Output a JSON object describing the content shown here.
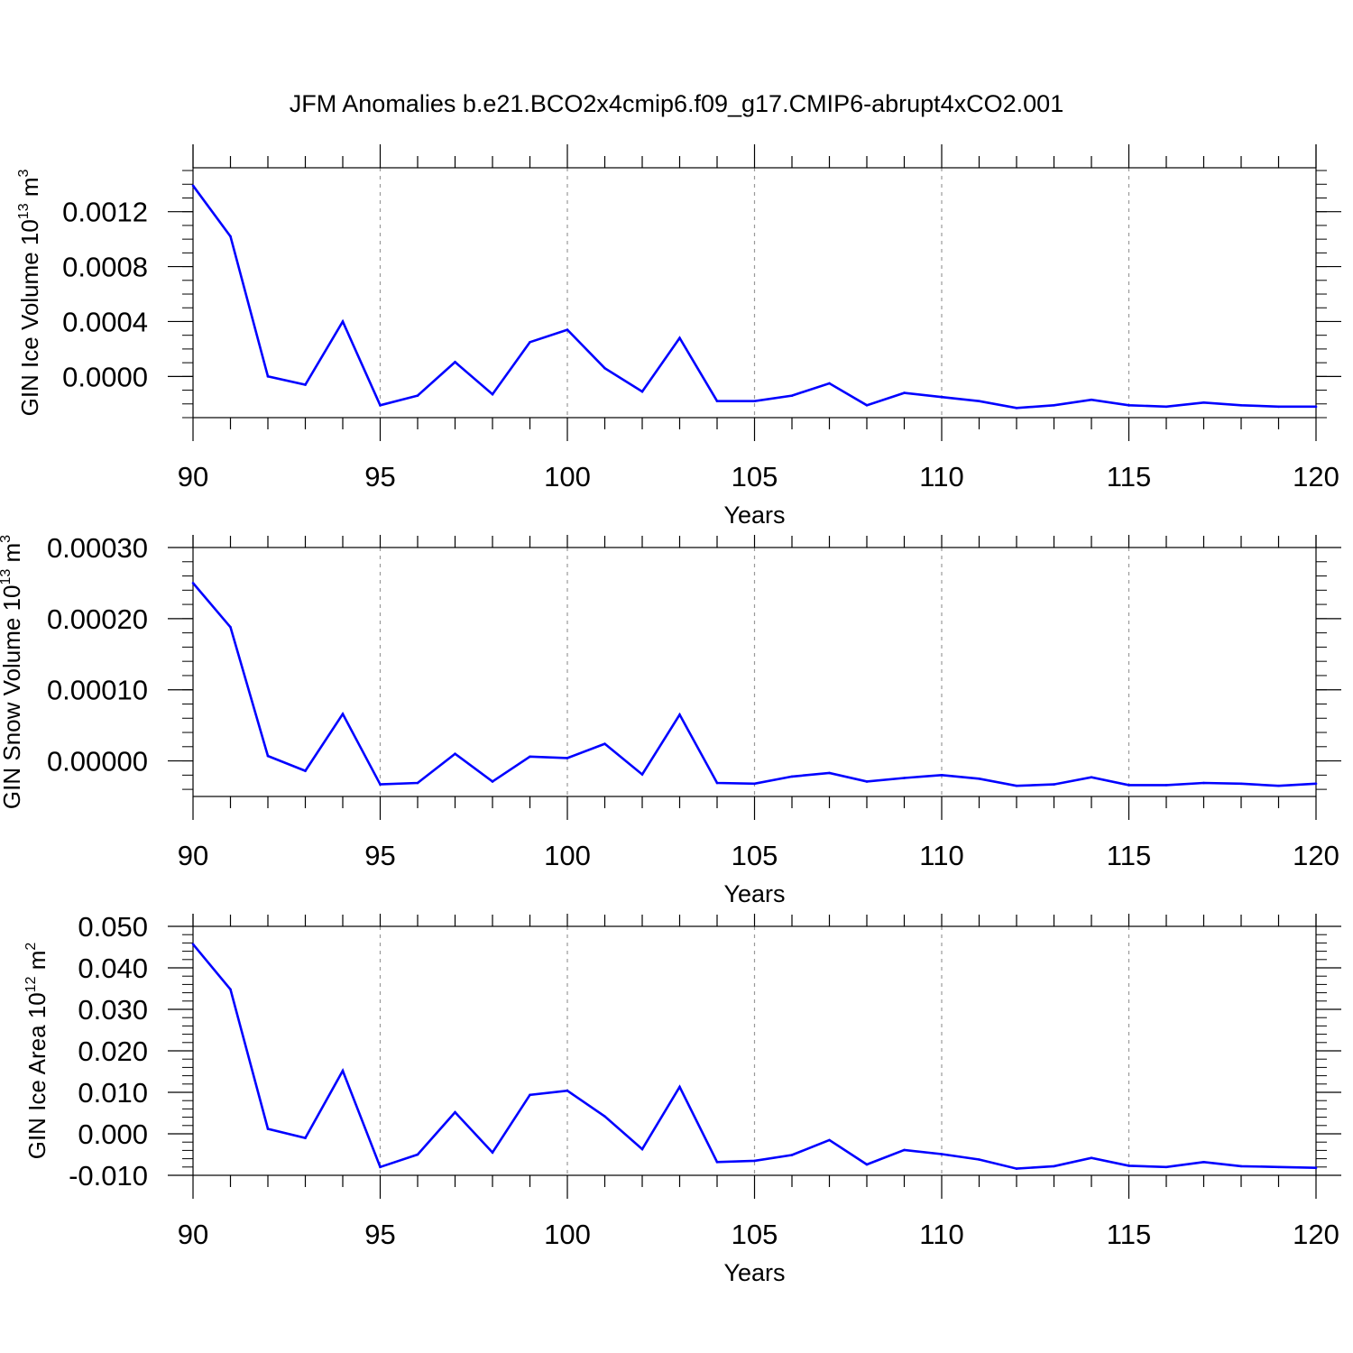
{
  "title": "JFM Anomalies b.e21.BCO2x4cmip6.f09_g17.CMIP6-abrupt4xCO2.001",
  "colors": {
    "series": "#0000ff",
    "axis": "#000000",
    "grid": "#9a9a9a"
  },
  "chart_data": [
    {
      "type": "line",
      "ylabel": "GIN Ice Volume 10",
      "ylabel_sup": "13",
      "ylabel_unit": " m",
      "ylabel_unit_sup": "3",
      "xlabel": "Years",
      "xlim": [
        90,
        120
      ],
      "ylim": [
        -0.0003,
        0.00152
      ],
      "x_ticks": [
        "90",
        "95",
        "100",
        "105",
        "110",
        "115",
        "120"
      ],
      "y_ticks": [
        "0.0000",
        "0.0004",
        "0.0008",
        "0.0012"
      ],
      "y_tick_values": [
        0.0,
        0.0004,
        0.0008,
        0.0012
      ],
      "y_minor_step": 0.0001,
      "grid": "vertical dashed at major x ticks",
      "x": [
        90,
        91,
        92,
        93,
        94,
        95,
        96,
        97,
        98,
        99,
        100,
        101,
        102,
        103,
        104,
        105,
        106,
        107,
        108,
        109,
        110,
        111,
        112,
        113,
        114,
        115,
        116,
        117,
        118,
        119,
        120
      ],
      "values": [
        0.00139,
        0.00102,
        0.0,
        -6e-05,
        0.0004,
        -0.00021,
        -0.00014,
        0.000105,
        -0.00013,
        0.00025,
        0.00034,
        6e-05,
        -0.00011,
        0.00028,
        -0.00018,
        -0.00018,
        -0.00014,
        -5e-05,
        -0.00021,
        -0.00012,
        -0.00015,
        -0.00018,
        -0.00023,
        -0.00021,
        -0.00017,
        -0.00021,
        -0.00022,
        -0.00019,
        -0.00021,
        -0.00022,
        -0.00022
      ]
    },
    {
      "type": "line",
      "ylabel": "GIN Snow Volume 10",
      "ylabel_sup": "13",
      "ylabel_unit": " m",
      "ylabel_unit_sup": "3",
      "xlabel": "Years",
      "xlim": [
        90,
        120
      ],
      "ylim": [
        -5e-05,
        0.0003
      ],
      "x_ticks": [
        "90",
        "95",
        "100",
        "105",
        "110",
        "115",
        "120"
      ],
      "y_ticks": [
        "0.00000",
        "0.00010",
        "0.00020",
        "0.00030"
      ],
      "y_tick_values": [
        0.0,
        0.0001,
        0.0002,
        0.0003
      ],
      "y_minor_step": 2e-05,
      "grid": "vertical dashed at major x ticks",
      "x": [
        90,
        91,
        92,
        93,
        94,
        95,
        96,
        97,
        98,
        99,
        100,
        101,
        102,
        103,
        104,
        105,
        106,
        107,
        108,
        109,
        110,
        111,
        112,
        113,
        114,
        115,
        116,
        117,
        118,
        119,
        120
      ],
      "values": [
        0.00025,
        0.000188,
        7e-06,
        -1.4e-05,
        6.6e-05,
        -3.3e-05,
        -3.1e-05,
        1e-05,
        -2.9e-05,
        6e-06,
        4e-06,
        2.4e-05,
        -1.9e-05,
        6.5e-05,
        -3.1e-05,
        -3.2e-05,
        -2.2e-05,
        -1.7e-05,
        -2.9e-05,
        -2.4e-05,
        -2e-05,
        -2.5e-05,
        -3.5e-05,
        -3.3e-05,
        -2.3e-05,
        -3.4e-05,
        -3.4e-05,
        -3.1e-05,
        -3.2e-05,
        -3.5e-05,
        -3.2e-05
      ]
    },
    {
      "type": "line",
      "ylabel": "GIN Ice Area 10",
      "ylabel_sup": "12",
      "ylabel_unit": " m",
      "ylabel_unit_sup": "2",
      "xlabel": "Years",
      "xlim": [
        90,
        120
      ],
      "ylim": [
        -0.01,
        0.05
      ],
      "x_ticks": [
        "90",
        "95",
        "100",
        "105",
        "110",
        "115",
        "120"
      ],
      "y_ticks": [
        "-0.010",
        "0.000",
        "0.010",
        "0.020",
        "0.030",
        "0.040",
        "0.050"
      ],
      "y_tick_values": [
        -0.01,
        0.0,
        0.01,
        0.02,
        0.03,
        0.04,
        0.05
      ],
      "y_minor_step": 0.002,
      "grid": "vertical dashed at major x ticks",
      "x": [
        90,
        91,
        92,
        93,
        94,
        95,
        96,
        97,
        98,
        99,
        100,
        101,
        102,
        103,
        104,
        105,
        106,
        107,
        108,
        109,
        110,
        111,
        112,
        113,
        114,
        115,
        116,
        117,
        118,
        119,
        120
      ],
      "values": [
        0.0457,
        0.0348,
        0.0012,
        -0.001,
        0.0152,
        -0.008,
        -0.005,
        0.0052,
        -0.0045,
        0.0094,
        0.0104,
        0.0042,
        -0.0037,
        0.0113,
        -0.0068,
        -0.0065,
        -0.0051,
        -0.0015,
        -0.0074,
        -0.0039,
        -0.0049,
        -0.0062,
        -0.0084,
        -0.0078,
        -0.0058,
        -0.0077,
        -0.008,
        -0.0068,
        -0.0078,
        -0.008,
        -0.0082
      ]
    }
  ]
}
